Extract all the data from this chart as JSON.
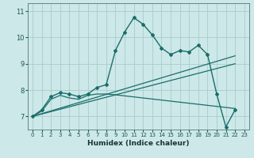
{
  "xlabel": "Humidex (Indice chaleur)",
  "background_color": "#cce8e8",
  "grid_color": "#aacccc",
  "line_color": "#1a6e6a",
  "xlim": [
    -0.5,
    23.5
  ],
  "ylim": [
    6.5,
    11.3
  ],
  "xticks": [
    0,
    1,
    2,
    3,
    4,
    5,
    6,
    7,
    8,
    9,
    10,
    11,
    12,
    13,
    14,
    15,
    16,
    17,
    18,
    19,
    20,
    21,
    22,
    23
  ],
  "yticks": [
    7,
    8,
    9,
    10,
    11
  ],
  "curve1_x": [
    0,
    1,
    2,
    3,
    4,
    5,
    6,
    7,
    8,
    9,
    10,
    11,
    12,
    13,
    14,
    15,
    16,
    17,
    18,
    19,
    20,
    21,
    22
  ],
  "curve1_y": [
    7.0,
    7.25,
    7.75,
    7.9,
    7.85,
    7.75,
    7.85,
    8.1,
    8.2,
    9.5,
    10.2,
    10.75,
    10.5,
    10.1,
    9.6,
    9.35,
    9.5,
    9.45,
    9.7,
    9.35,
    7.85,
    6.6,
    7.25
  ],
  "curve2_x": [
    0,
    1,
    2,
    3,
    4,
    5,
    6,
    7,
    8,
    9,
    10,
    11,
    12,
    13,
    14,
    15,
    16,
    17,
    18,
    19,
    20,
    21,
    22
  ],
  "curve2_y": [
    7.0,
    7.2,
    7.65,
    7.8,
    7.7,
    7.65,
    7.8,
    7.85,
    7.85,
    7.82,
    7.78,
    7.74,
    7.7,
    7.66,
    7.62,
    7.58,
    7.54,
    7.5,
    7.46,
    7.42,
    7.38,
    7.34,
    7.3
  ],
  "line1_x": [
    0,
    22
  ],
  "line1_y": [
    7.0,
    9.3
  ],
  "line2_x": [
    0,
    22
  ],
  "line2_y": [
    7.0,
    9.0
  ]
}
